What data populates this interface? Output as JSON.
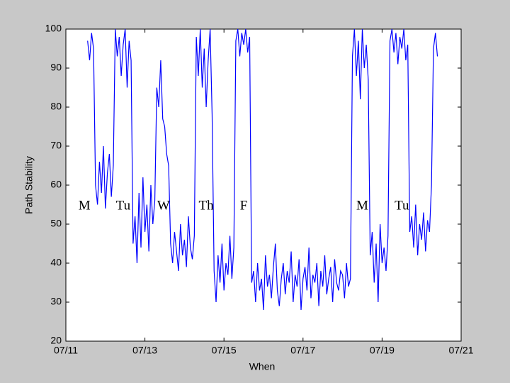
{
  "chart_data": {
    "type": "line",
    "xlabel": "When",
    "ylabel": "Path Stability",
    "xlim": [
      11,
      21
    ],
    "ylim": [
      20,
      100
    ],
    "xticks": [
      {
        "value": 11,
        "label": "07/11"
      },
      {
        "value": 13,
        "label": "07/13"
      },
      {
        "value": 15,
        "label": "07/15"
      },
      {
        "value": 17,
        "label": "07/17"
      },
      {
        "value": 19,
        "label": "07/19"
      },
      {
        "value": 21,
        "label": "07/21"
      }
    ],
    "yticks": [
      20,
      30,
      40,
      50,
      60,
      70,
      80,
      90,
      100
    ],
    "color": "#0000ff",
    "annotations": [
      {
        "text": "M",
        "x": 11.47,
        "y": 54.5
      },
      {
        "text": "Tu",
        "x": 12.45,
        "y": 54.5
      },
      {
        "text": "W",
        "x": 13.47,
        "y": 54.5
      },
      {
        "text": "Th",
        "x": 14.55,
        "y": 54.5
      },
      {
        "text": "F",
        "x": 15.5,
        "y": 54.5
      },
      {
        "text": "M",
        "x": 18.5,
        "y": 54.5
      },
      {
        "text": "Tu",
        "x": 19.5,
        "y": 54.5
      }
    ],
    "x": [
      11.55,
      11.6,
      11.65,
      11.7,
      11.75,
      11.8,
      11.85,
      11.9,
      11.95,
      12,
      12.05,
      12.1,
      12.15,
      12.2,
      12.25,
      12.3,
      12.35,
      12.4,
      12.45,
      12.5,
      12.55,
      12.6,
      12.65,
      12.7,
      12.75,
      12.8,
      12.85,
      12.9,
      12.95,
      13,
      13.05,
      13.1,
      13.15,
      13.2,
      13.25,
      13.3,
      13.35,
      13.4,
      13.45,
      13.5,
      13.55,
      13.6,
      13.65,
      13.7,
      13.75,
      13.8,
      13.85,
      13.9,
      13.95,
      14,
      14.05,
      14.1,
      14.15,
      14.2,
      14.25,
      14.3,
      14.35,
      14.4,
      14.45,
      14.5,
      14.55,
      14.6,
      14.65,
      14.7,
      14.75,
      14.8,
      14.85,
      14.9,
      14.95,
      15,
      15.05,
      15.1,
      15.15,
      15.2,
      15.25,
      15.3,
      15.35,
      15.4,
      15.45,
      15.5,
      15.55,
      15.6,
      15.65,
      15.7,
      15.75,
      15.8,
      15.85,
      15.9,
      15.95,
      16,
      16.05,
      16.1,
      16.15,
      16.2,
      16.25,
      16.3,
      16.35,
      16.4,
      16.45,
      16.5,
      16.55,
      16.6,
      16.65,
      16.7,
      16.75,
      16.8,
      16.85,
      16.9,
      16.95,
      17,
      17.05,
      17.1,
      17.15,
      17.2,
      17.25,
      17.3,
      17.35,
      17.4,
      17.45,
      17.5,
      17.55,
      17.6,
      17.65,
      17.7,
      17.75,
      17.8,
      17.85,
      17.9,
      17.95,
      18,
      18.05,
      18.1,
      18.15,
      18.2,
      18.25,
      18.3,
      18.35,
      18.4,
      18.45,
      18.5,
      18.55,
      18.6,
      18.65,
      18.7,
      18.75,
      18.8,
      18.85,
      18.9,
      18.95,
      19,
      19.05,
      19.1,
      19.15,
      19.2,
      19.25,
      19.3,
      19.35,
      19.4,
      19.45,
      19.5,
      19.55,
      19.6,
      19.65,
      19.7,
      19.75,
      19.8,
      19.85,
      19.9,
      19.95,
      20,
      20.05,
      20.1,
      20.15,
      20.2,
      20.25,
      20.3,
      20.35,
      20.4
    ],
    "values": [
      97,
      92,
      99,
      95,
      60,
      55,
      66,
      58,
      70,
      54,
      63,
      68,
      57,
      65,
      100,
      93,
      98,
      88,
      96,
      100,
      85,
      97,
      92,
      45,
      52,
      40,
      58,
      44,
      62,
      48,
      55,
      43,
      60,
      50,
      56,
      85,
      80,
      92,
      77,
      75,
      68,
      65,
      45,
      40,
      48,
      43,
      38,
      50,
      42,
      46,
      39,
      52,
      44,
      41,
      47,
      98,
      88,
      100,
      85,
      95,
      80,
      92,
      100,
      78,
      38,
      30,
      42,
      35,
      45,
      33,
      40,
      37,
      47,
      36,
      44,
      97,
      100,
      93,
      99,
      96,
      100,
      94,
      98,
      35,
      38,
      30,
      40,
      33,
      36,
      28,
      42,
      34,
      37,
      31,
      39,
      45,
      33,
      29,
      36,
      40,
      32,
      38,
      35,
      43,
      30,
      37,
      34,
      41,
      28,
      36,
      39,
      33,
      44,
      31,
      37,
      35,
      40,
      29,
      38,
      34,
      42,
      32,
      36,
      39,
      30,
      41,
      35,
      33,
      38,
      37,
      31,
      40,
      34,
      36,
      93,
      100,
      88,
      97,
      82,
      100,
      90,
      96,
      87,
      42,
      48,
      35,
      45,
      30,
      50,
      40,
      44,
      38,
      47,
      97,
      100,
      94,
      99,
      91,
      98,
      95,
      100,
      92,
      96,
      48,
      52,
      44,
      55,
      42,
      50,
      46,
      53,
      43,
      51,
      48,
      60,
      95,
      99,
      93
    ]
  }
}
